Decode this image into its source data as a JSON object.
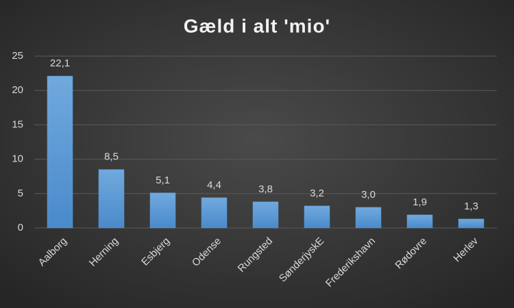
{
  "chart_data": {
    "type": "bar",
    "title": "Gæld i alt 'mio'",
    "categories": [
      "Aalborg",
      "Herning",
      "Esbjerg",
      "Odense",
      "Rungsted",
      "SønderjyskE",
      "Frederikshavn",
      "Rødovre",
      "Herlev"
    ],
    "values": [
      22.1,
      8.5,
      5.1,
      4.4,
      3.8,
      3.2,
      3.0,
      1.9,
      1.3
    ],
    "value_labels": [
      "22,1",
      "8,5",
      "5,1",
      "4,4",
      "3,8",
      "3,2",
      "3,0",
      "1,9",
      "1,3"
    ],
    "color": "#5b9bd5",
    "ylim": [
      0,
      25
    ],
    "yticks": [
      0,
      5,
      10,
      15,
      20,
      25
    ],
    "grid": true
  }
}
